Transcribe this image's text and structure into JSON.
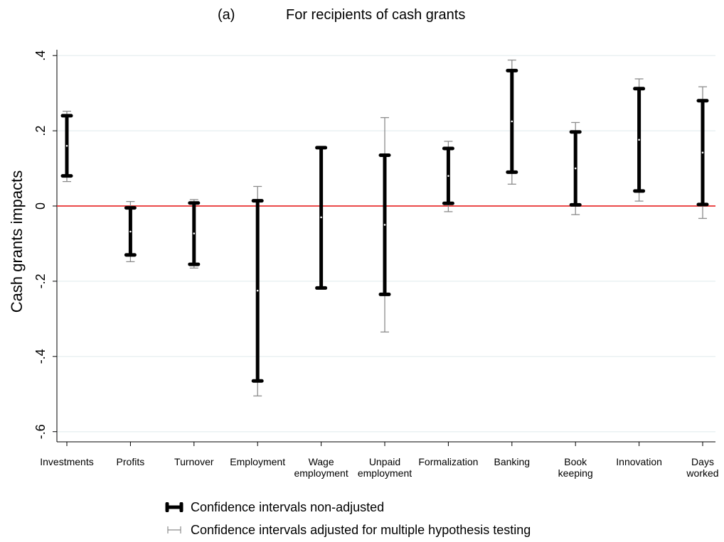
{
  "figure": {
    "panel_tag": "(a)",
    "title": "For recipients of cash grants"
  },
  "chart_data": {
    "type": "scatter",
    "title": "For recipients of cash grants",
    "ylabel": "Cash grants impacts",
    "xlabel": "",
    "categories": [
      [
        "Investments"
      ],
      [
        "Profits"
      ],
      [
        "Turnover"
      ],
      [
        "Employment"
      ],
      [
        "Wage",
        "employment"
      ],
      [
        "Unpaid",
        "employment"
      ],
      [
        "Formalization"
      ],
      [
        "Banking"
      ],
      [
        "Book",
        "keeping"
      ],
      [
        "Innovation"
      ],
      [
        "Days",
        "worked"
      ]
    ],
    "ylim": [
      -0.63,
      0.42
    ],
    "yticks": [
      {
        "value": 0.4,
        "label": ".4"
      },
      {
        "value": 0.2,
        "label": ".2"
      },
      {
        "value": 0,
        "label": "0"
      },
      {
        "value": -0.2,
        "label": "-.2"
      },
      {
        "value": -0.4,
        "label": "-.4"
      },
      {
        "value": -0.6,
        "label": "-.6"
      }
    ],
    "reference_line": {
      "value": 0,
      "color": "#e8312f"
    },
    "grid": true,
    "series": [
      {
        "name": "Confidence intervals non-adjusted",
        "style": "thick",
        "color": "#000000",
        "points": [
          {
            "estimate": 0.16,
            "low": 0.08,
            "high": 0.24
          },
          {
            "estimate": -0.068,
            "low": -0.13,
            "high": -0.005
          },
          {
            "estimate": -0.073,
            "low": -0.155,
            "high": 0.008
          },
          {
            "estimate": -0.225,
            "low": -0.465,
            "high": 0.014
          },
          {
            "estimate": -0.03,
            "low": -0.218,
            "high": 0.155
          },
          {
            "estimate": -0.05,
            "low": -0.235,
            "high": 0.135
          },
          {
            "estimate": 0.08,
            "low": 0.007,
            "high": 0.153
          },
          {
            "estimate": 0.225,
            "low": 0.09,
            "high": 0.36
          },
          {
            "estimate": 0.1,
            "low": 0.003,
            "high": 0.197
          },
          {
            "estimate": 0.176,
            "low": 0.04,
            "high": 0.312
          },
          {
            "estimate": 0.142,
            "low": 0.004,
            "high": 0.28
          }
        ]
      },
      {
        "name": "Confidence intervals adjusted for multiple hypothesis testing",
        "style": "thin",
        "color": "#8c8c8c",
        "points": [
          {
            "low": 0.065,
            "high": 0.252
          },
          {
            "low": -0.148,
            "high": 0.012
          },
          {
            "low": -0.165,
            "high": 0.017
          },
          {
            "low": -0.505,
            "high": 0.052
          },
          {
            "low": -0.218,
            "high": 0.155
          },
          {
            "low": -0.335,
            "high": 0.235
          },
          {
            "low": -0.015,
            "high": 0.172
          },
          {
            "low": 0.058,
            "high": 0.388
          },
          {
            "low": -0.023,
            "high": 0.222
          },
          {
            "low": 0.013,
            "high": 0.338
          },
          {
            "low": -0.033,
            "high": 0.317
          }
        ]
      }
    ],
    "legend": {
      "position": "bottom",
      "items": [
        "Confidence intervals non-adjusted",
        "Confidence intervals adjusted for multiple hypothesis testing"
      ]
    }
  }
}
